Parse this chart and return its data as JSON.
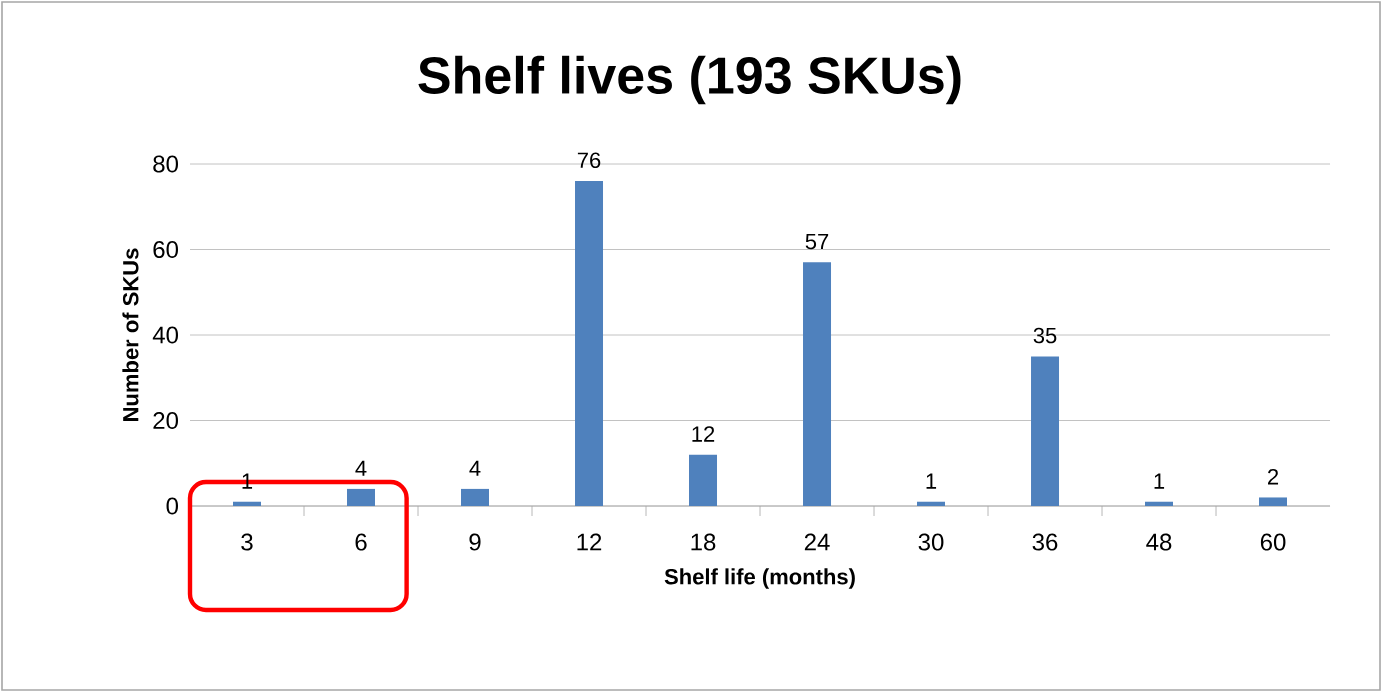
{
  "chart_data": {
    "type": "bar",
    "title": "Shelf lives (193 SKUs)",
    "xlabel": "Shelf life (months)",
    "ylabel": "Number of SKUs",
    "categories": [
      "3",
      "6",
      "9",
      "12",
      "18",
      "24",
      "30",
      "36",
      "48",
      "60"
    ],
    "values": [
      1,
      4,
      4,
      76,
      12,
      57,
      1,
      35,
      1,
      2
    ],
    "color": "#4f81bd",
    "ylim": [
      0,
      80
    ],
    "yticks": [
      0,
      20,
      40,
      60,
      80
    ],
    "grid": "y",
    "data_labels": true
  }
}
